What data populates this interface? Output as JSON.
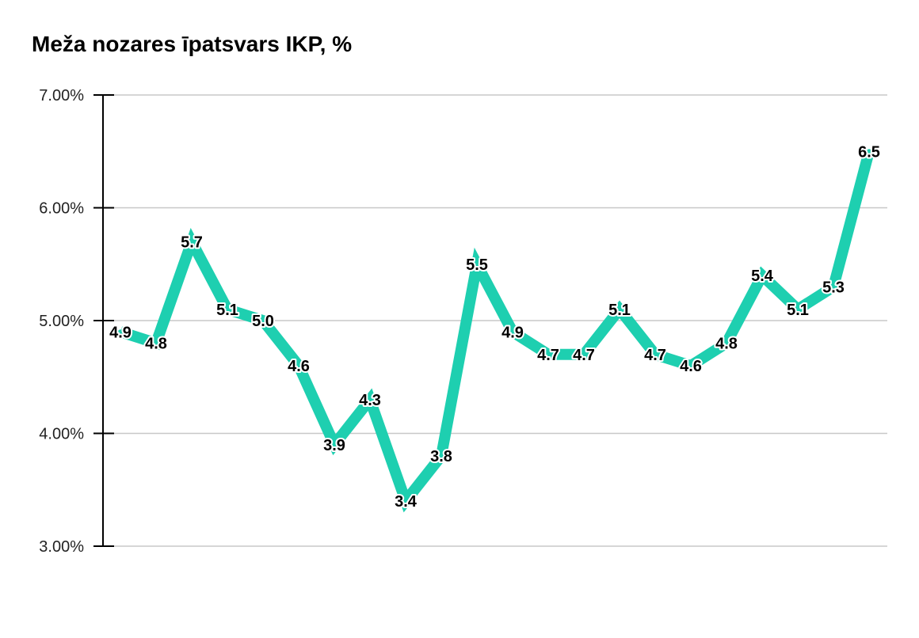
{
  "chart_data": {
    "type": "line",
    "title": "Meža nozares īpatsvars IKP, %",
    "xlabel": "",
    "ylabel": "",
    "ylim": [
      3.0,
      7.0
    ],
    "yticks": [
      3.0,
      4.0,
      5.0,
      6.0,
      7.0
    ],
    "ytick_labels": [
      "3.00%",
      "4.00%",
      "5.00%",
      "6.00%",
      "7.00%"
    ],
    "grid": true,
    "legend": "none",
    "line_color": "#1ecfb0",
    "series": [
      {
        "values": [
          4.9,
          4.8,
          5.7,
          5.1,
          5.0,
          4.6,
          3.9,
          4.3,
          3.4,
          3.8,
          5.5,
          4.9,
          4.7,
          4.7,
          5.1,
          4.7,
          4.6,
          4.8,
          5.4,
          5.1,
          5.3,
          6.5
        ],
        "labels": [
          "4.9",
          "4.8",
          "5.7",
          "5.1",
          "5.0",
          "4.6",
          "3.9",
          "4.3",
          "3.4",
          "3.8",
          "5.5",
          "4.9",
          "4.7",
          "4.7",
          "5.1",
          "4.7",
          "4.6",
          "4.8",
          "5.4",
          "5.1",
          "5.3",
          "6.5"
        ]
      }
    ]
  }
}
